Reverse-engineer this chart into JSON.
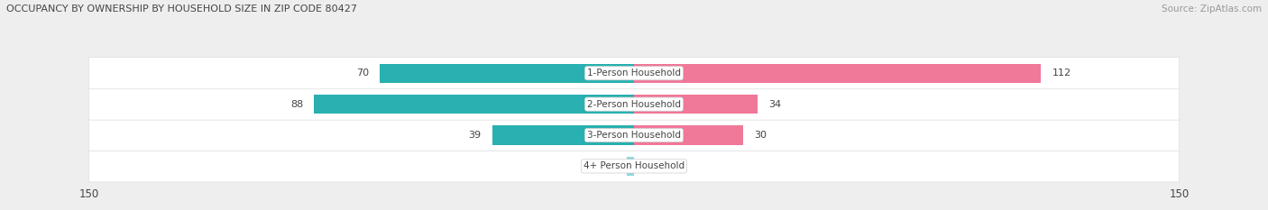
{
  "title": "OCCUPANCY BY OWNERSHIP BY HOUSEHOLD SIZE IN ZIP CODE 80427",
  "source": "Source: ZipAtlas.com",
  "categories": [
    "1-Person Household",
    "2-Person Household",
    "3-Person Household",
    "4+ Person Household"
  ],
  "owner_values": [
    70,
    88,
    39,
    2
  ],
  "renter_values": [
    112,
    34,
    30,
    0
  ],
  "owner_color": "#29b0b0",
  "renter_color": "#f07898",
  "owner_color_light": "#90d8e0",
  "renter_color_light": "#f8b8cc",
  "axis_max": 150,
  "background_color": "#eeeeee",
  "row_bg_color": "#ffffff",
  "sep_color": "#dddddd",
  "title_color": "#444444",
  "source_color": "#999999",
  "label_color": "#444444",
  "value_color": "#444444",
  "bar_height": 0.62,
  "figsize": [
    14.06,
    2.33
  ],
  "dpi": 100
}
